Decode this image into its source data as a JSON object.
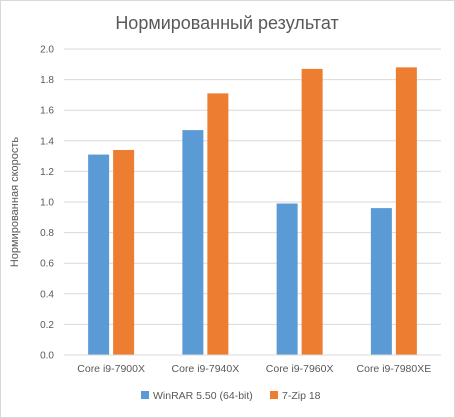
{
  "chart_data": {
    "type": "bar",
    "title": "Нормированный результат",
    "xlabel": "",
    "ylabel": "Нормированная скорость",
    "categories": [
      "Core i9-7900X",
      "Core i9-7940X",
      "Core i9-7960X",
      "Core i9-7980XE"
    ],
    "series": [
      {
        "name": "WinRAR 5.50 (64-bit)",
        "color": "#5b9bd5",
        "values": [
          1.31,
          1.47,
          0.99,
          0.96
        ]
      },
      {
        "name": "7-Zip 18",
        "color": "#ed7d31",
        "values": [
          1.34,
          1.71,
          1.87,
          1.88
        ]
      }
    ],
    "ylim": [
      0,
      2.0
    ],
    "ytick_step": 0.2,
    "ytick_labels": [
      "0.0",
      "0.2",
      "0.4",
      "0.6",
      "0.8",
      "1.0",
      "1.2",
      "1.4",
      "1.6",
      "1.8",
      "2.0"
    ],
    "grid": true,
    "legend_position": "bottom"
  }
}
